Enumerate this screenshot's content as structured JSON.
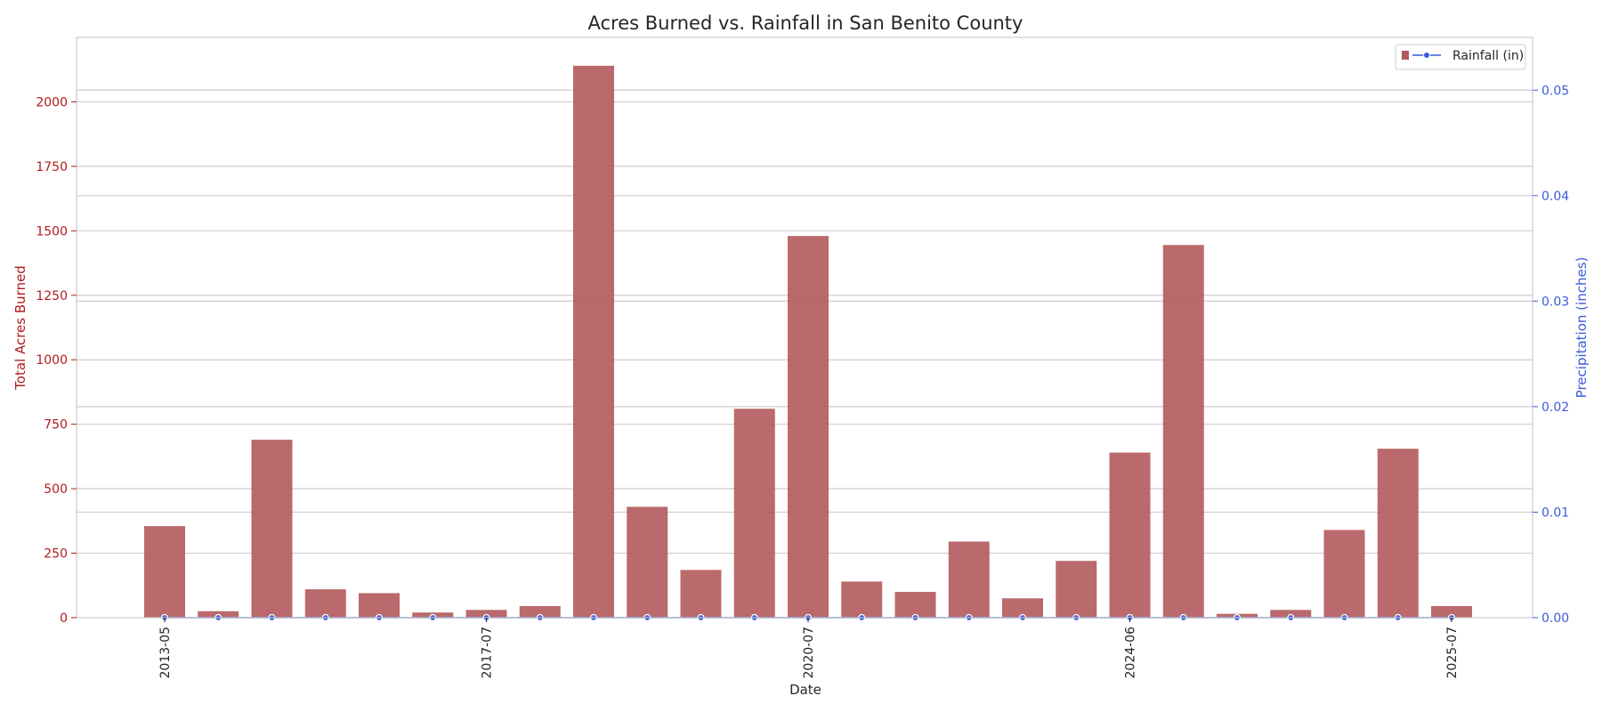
{
  "chart_data": {
    "type": "bar",
    "title": "Acres Burned vs. Rainfall in San Benito County",
    "xlabel": "Date",
    "ylabel": "Total Acres Burned",
    "y2label": "Precipitation (inches)",
    "x_ticks": [
      "2013-05",
      "2017-07",
      "2020-07",
      "2024-06",
      "2025-07"
    ],
    "x_tick_bar_index": [
      0,
      6,
      12,
      18,
      24
    ],
    "ylim": [
      0,
      2250
    ],
    "y_ticks": [
      0,
      250,
      500,
      750,
      1000,
      1250,
      1500,
      1750,
      2000
    ],
    "y2lim": [
      0,
      0.055
    ],
    "y2_ticks": [
      "0.00",
      "0.01",
      "0.02",
      "0.03",
      "0.04",
      "0.05"
    ],
    "grid": true,
    "legend_position": "top-right",
    "series": [
      {
        "name": "",
        "kind": "bar",
        "color": "#b35a5c",
        "values": [
          355,
          25,
          690,
          110,
          95,
          20,
          30,
          45,
          2140,
          430,
          185,
          810,
          1480,
          140,
          100,
          295,
          75,
          220,
          640,
          1445,
          15,
          30,
          340,
          655,
          45
        ]
      },
      {
        "name": "Rainfall (in)",
        "kind": "line",
        "color": "#3b5bdb",
        "values": [
          0,
          0,
          0,
          0,
          0,
          0,
          0,
          0,
          0,
          0,
          0,
          0,
          0,
          0,
          0,
          0,
          0,
          0,
          0,
          0,
          0,
          0,
          0,
          0,
          0
        ]
      }
    ]
  }
}
